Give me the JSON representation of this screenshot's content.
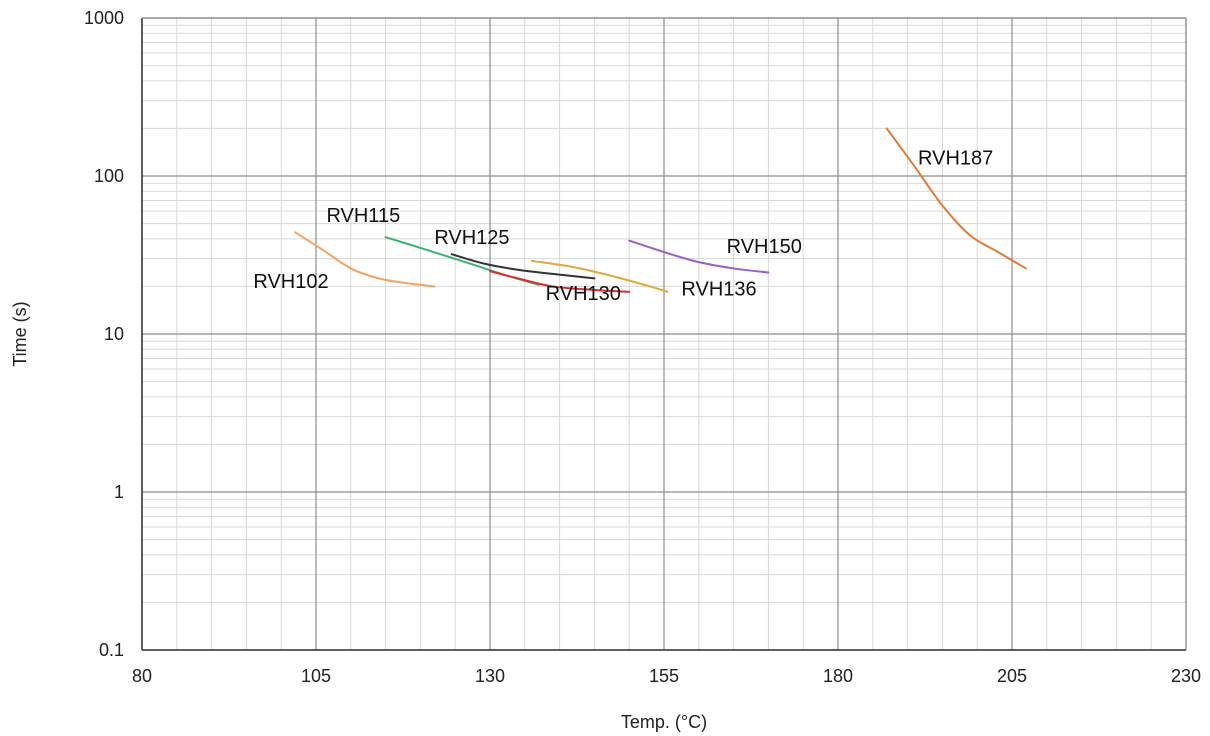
{
  "chart_data": {
    "type": "line",
    "xlabel": "Temp. (°C)",
    "ylabel": "Time (s)",
    "xlim": [
      80,
      230
    ],
    "ylim": [
      0.1,
      1000
    ],
    "yscale": "log",
    "grid": true,
    "x_ticks": [
      "80",
      "105",
      "130",
      "155",
      "180",
      "205",
      "230"
    ],
    "y_ticks": [
      "0.1",
      "1",
      "10",
      "100",
      "1000"
    ],
    "x_tick_values": [
      80,
      105,
      130,
      155,
      180,
      205,
      230
    ],
    "y_tick_values": [
      0.1,
      1,
      10,
      100,
      1000
    ],
    "colors": {
      "grid_major": "#8c8c8c",
      "grid_minor": "#d9d9d9",
      "axis": "#333333"
    },
    "series": [
      {
        "name": "RVH102",
        "color": "#f4a460",
        "x": [
          102,
          106,
          110,
          114,
          118,
          122
        ],
        "y": [
          44,
          34,
          26,
          22.5,
          21,
          20
        ]
      },
      {
        "name": "RVH115",
        "color": "#3cb371",
        "x": [
          115,
          121,
          127,
          133,
          137
        ],
        "y": [
          41,
          34,
          28,
          23,
          20.5
        ]
      },
      {
        "name": "RVH125",
        "color": "#333333",
        "x": [
          124.5,
          129,
          134,
          139,
          145
        ],
        "y": [
          32,
          28,
          25.5,
          24,
          22.5
        ]
      },
      {
        "name": "RVH130",
        "color": "#dc2d2d",
        "x": [
          130,
          134,
          139,
          145,
          150
        ],
        "y": [
          25,
          22.5,
          20,
          19,
          18.5
        ]
      },
      {
        "name": "RVH136",
        "color": "#e0a93a",
        "x": [
          136,
          142,
          148,
          153,
          155.5
        ],
        "y": [
          29,
          26.5,
          23,
          20,
          18.5
        ]
      },
      {
        "name": "RVH150",
        "color": "#9a5fd0",
        "x": [
          150,
          155,
          160,
          165,
          170
        ],
        "y": [
          39,
          33,
          28.5,
          26,
          24.5
        ]
      },
      {
        "name": "RVH187",
        "color": "#e07b39",
        "x": [
          187,
          191,
          195,
          199,
          203,
          207
        ],
        "y": [
          200,
          115,
          65,
          42,
          33,
          26
        ]
      }
    ],
    "annotations": [
      {
        "text": "RVH102",
        "series": "RVH102",
        "at": [
          96,
          19.5
        ],
        "anchor": "start"
      },
      {
        "text": "RVH115",
        "series": "RVH115",
        "at": [
          106.5,
          51
        ],
        "anchor": "start"
      },
      {
        "text": "RVH125",
        "series": "RVH125",
        "at": [
          122,
          37
        ],
        "anchor": "start"
      },
      {
        "text": "RVH130",
        "series": "RVH130",
        "at": [
          138,
          16.4
        ],
        "anchor": "start"
      },
      {
        "text": "RVH136",
        "series": "RVH136",
        "at": [
          157.5,
          17.5
        ],
        "anchor": "start"
      },
      {
        "text": "RVH150",
        "series": "RVH150",
        "at": [
          164,
          32.5
        ],
        "anchor": "start"
      },
      {
        "text": "RVH187",
        "series": "RVH187",
        "at": [
          191.5,
          118
        ],
        "anchor": "start"
      }
    ]
  }
}
